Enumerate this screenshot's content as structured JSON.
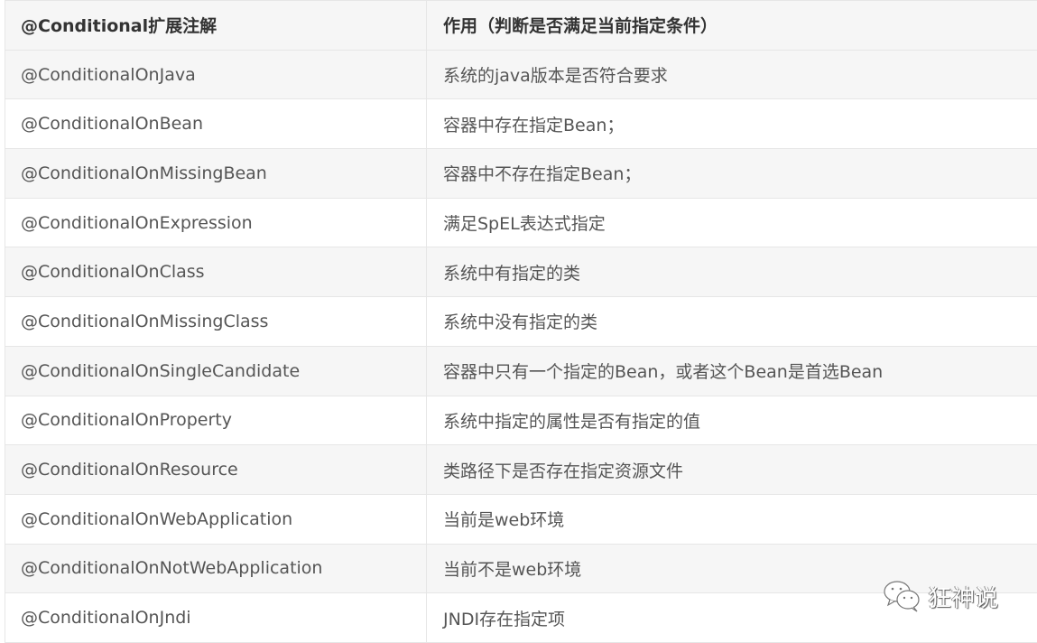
{
  "table": {
    "headers": [
      "@Conditional扩展注解",
      "作用（判断是否满足当前指定条件）"
    ],
    "rows": [
      [
        "@ConditionalOnJava",
        "系统的java版本是否符合要求"
      ],
      [
        "@ConditionalOnBean",
        "容器中存在指定Bean；"
      ],
      [
        "@ConditionalOnMissingBean",
        "容器中不存在指定Bean；"
      ],
      [
        "@ConditionalOnExpression",
        "满足SpEL表达式指定"
      ],
      [
        "@ConditionalOnClass",
        "系统中有指定的类"
      ],
      [
        "@ConditionalOnMissingClass",
        "系统中没有指定的类"
      ],
      [
        "@ConditionalOnSingleCandidate",
        "容器中只有一个指定的Bean，或者这个Bean是首选Bean"
      ],
      [
        "@ConditionalOnProperty",
        "系统中指定的属性是否有指定的值"
      ],
      [
        "@ConditionalOnResource",
        "类路径下是否存在指定资源文件"
      ],
      [
        "@ConditionalOnWebApplication",
        "当前是web环境"
      ],
      [
        "@ConditionalOnNotWebApplication",
        "当前不是web环境"
      ],
      [
        "@ConditionalOnJndi",
        "JNDI存在指定项"
      ]
    ]
  },
  "watermark": {
    "icon": "wechat-icon",
    "text": "狂神说"
  }
}
